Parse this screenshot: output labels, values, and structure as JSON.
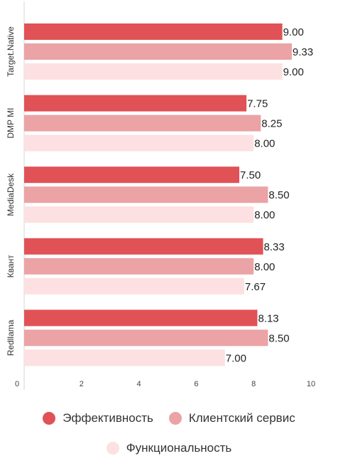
{
  "chart_data": {
    "type": "bar",
    "orientation": "horizontal",
    "categories": [
      "Target.Native",
      "DMP MI",
      "MediaDesk",
      "Квант",
      "Redllama"
    ],
    "series": [
      {
        "name": "Эффективность",
        "color": "#e05256",
        "values": [
          9.0,
          7.75,
          7.5,
          8.33,
          8.13
        ],
        "labels": [
          "9.00",
          "7.75",
          "7.50",
          "8.33",
          "8.13"
        ]
      },
      {
        "name": "Клиентский сервис",
        "color": "#eba3a5",
        "values": [
          9.33,
          8.25,
          8.5,
          8.0,
          8.5
        ],
        "labels": [
          "9.33",
          "8.25",
          "8.50",
          "8.00",
          "8.50"
        ]
      },
      {
        "name": "Функциональность",
        "color": "#fde0e1",
        "values": [
          9.0,
          8.0,
          8.0,
          7.67,
          7.0
        ],
        "labels": [
          "9.00",
          "8.00",
          "8.00",
          "7.67",
          "7.00"
        ]
      }
    ],
    "xlim": [
      0,
      10
    ],
    "xticks": [
      "0",
      "2",
      "4",
      "6",
      "8",
      "10"
    ],
    "grid": false,
    "legend_position": "bottom"
  }
}
